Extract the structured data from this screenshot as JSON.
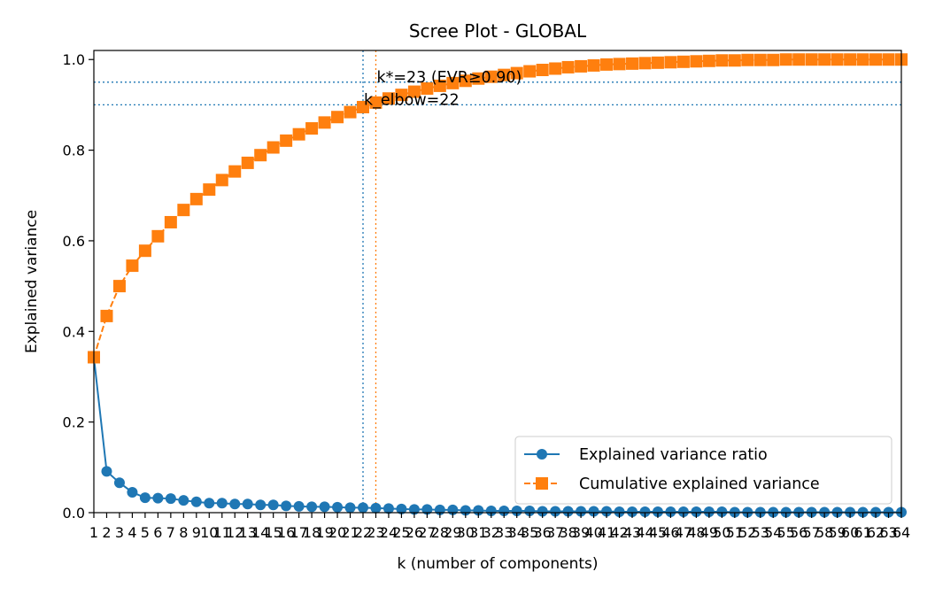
{
  "chart_data": {
    "type": "line",
    "title": "Scree Plot - GLOBAL",
    "xlabel": "k (number of components)",
    "ylabel": "Explained variance",
    "xlim": [
      1,
      64
    ],
    "ylim": [
      0,
      1.02
    ],
    "yticks": [
      0.0,
      0.2,
      0.4,
      0.6,
      0.8,
      1.0
    ],
    "ytick_labels": [
      "0.0",
      "0.2",
      "0.4",
      "0.6",
      "0.8",
      "1.0"
    ],
    "x": [
      1,
      2,
      3,
      4,
      5,
      6,
      7,
      8,
      9,
      10,
      11,
      12,
      13,
      14,
      15,
      16,
      17,
      18,
      19,
      20,
      21,
      22,
      23,
      24,
      25,
      26,
      27,
      28,
      29,
      30,
      31,
      32,
      33,
      34,
      35,
      36,
      37,
      38,
      39,
      40,
      41,
      42,
      43,
      44,
      45,
      46,
      47,
      48,
      49,
      50,
      51,
      52,
      53,
      54,
      55,
      56,
      57,
      58,
      59,
      60,
      61,
      62,
      63,
      64
    ],
    "series": [
      {
        "name": "Explained variance ratio",
        "color": "#1f77b4",
        "marker": "circle",
        "linestyle": "solid",
        "values": [
          0.343,
          0.091,
          0.066,
          0.045,
          0.033,
          0.032,
          0.031,
          0.027,
          0.024,
          0.021,
          0.021,
          0.019,
          0.019,
          0.017,
          0.017,
          0.015,
          0.014,
          0.013,
          0.013,
          0.012,
          0.011,
          0.011,
          0.01,
          0.009,
          0.008,
          0.007,
          0.007,
          0.006,
          0.006,
          0.005,
          0.005,
          0.004,
          0.004,
          0.004,
          0.004,
          0.003,
          0.003,
          0.003,
          0.003,
          0.003,
          0.003,
          0.002,
          0.002,
          0.002,
          0.002,
          0.002,
          0.002,
          0.002,
          0.002,
          0.002,
          0.001,
          0.001,
          0.001,
          0.001,
          0.001,
          0.001,
          0.001,
          0.001,
          0.001,
          0.001,
          0.001,
          0.001,
          0.001,
          0.001
        ]
      },
      {
        "name": "Cumulative explained variance",
        "color": "#ff7f0e",
        "marker": "square",
        "linestyle": "dashed",
        "values": [
          0.343,
          0.434,
          0.5,
          0.545,
          0.578,
          0.61,
          0.641,
          0.668,
          0.692,
          0.713,
          0.734,
          0.753,
          0.772,
          0.789,
          0.806,
          0.821,
          0.835,
          0.848,
          0.861,
          0.873,
          0.884,
          0.895,
          0.905,
          0.914,
          0.922,
          0.929,
          0.936,
          0.942,
          0.948,
          0.953,
          0.958,
          0.962,
          0.966,
          0.97,
          0.974,
          0.977,
          0.98,
          0.983,
          0.985,
          0.987,
          0.989,
          0.99,
          0.991,
          0.992,
          0.993,
          0.994,
          0.995,
          0.996,
          0.997,
          0.998,
          0.998,
          0.999,
          0.999,
          0.999,
          1.0,
          1.0,
          1.0,
          1.0,
          1.0,
          1.0,
          1.0,
          1.0,
          1.0,
          1.0
        ]
      }
    ],
    "reference_lines": {
      "horizontal": [
        {
          "y": 0.9,
          "color": "#1f77b4",
          "style": "dotted"
        },
        {
          "y": 0.95,
          "color": "#1f77b4",
          "style": "dotted"
        }
      ],
      "vertical": [
        {
          "x": 22,
          "color": "#1f77b4",
          "style": "dotted"
        },
        {
          "x": 23,
          "color": "#ff7f0e",
          "style": "dotted"
        }
      ]
    },
    "annotations": [
      {
        "text": "k*=23 (EVR≥0.90)",
        "x": 23,
        "y": 0.95
      },
      {
        "text": "k_elbow=22",
        "x": 22,
        "y": 0.9
      }
    ],
    "legend_position": "bottom-right",
    "grid": false
  }
}
